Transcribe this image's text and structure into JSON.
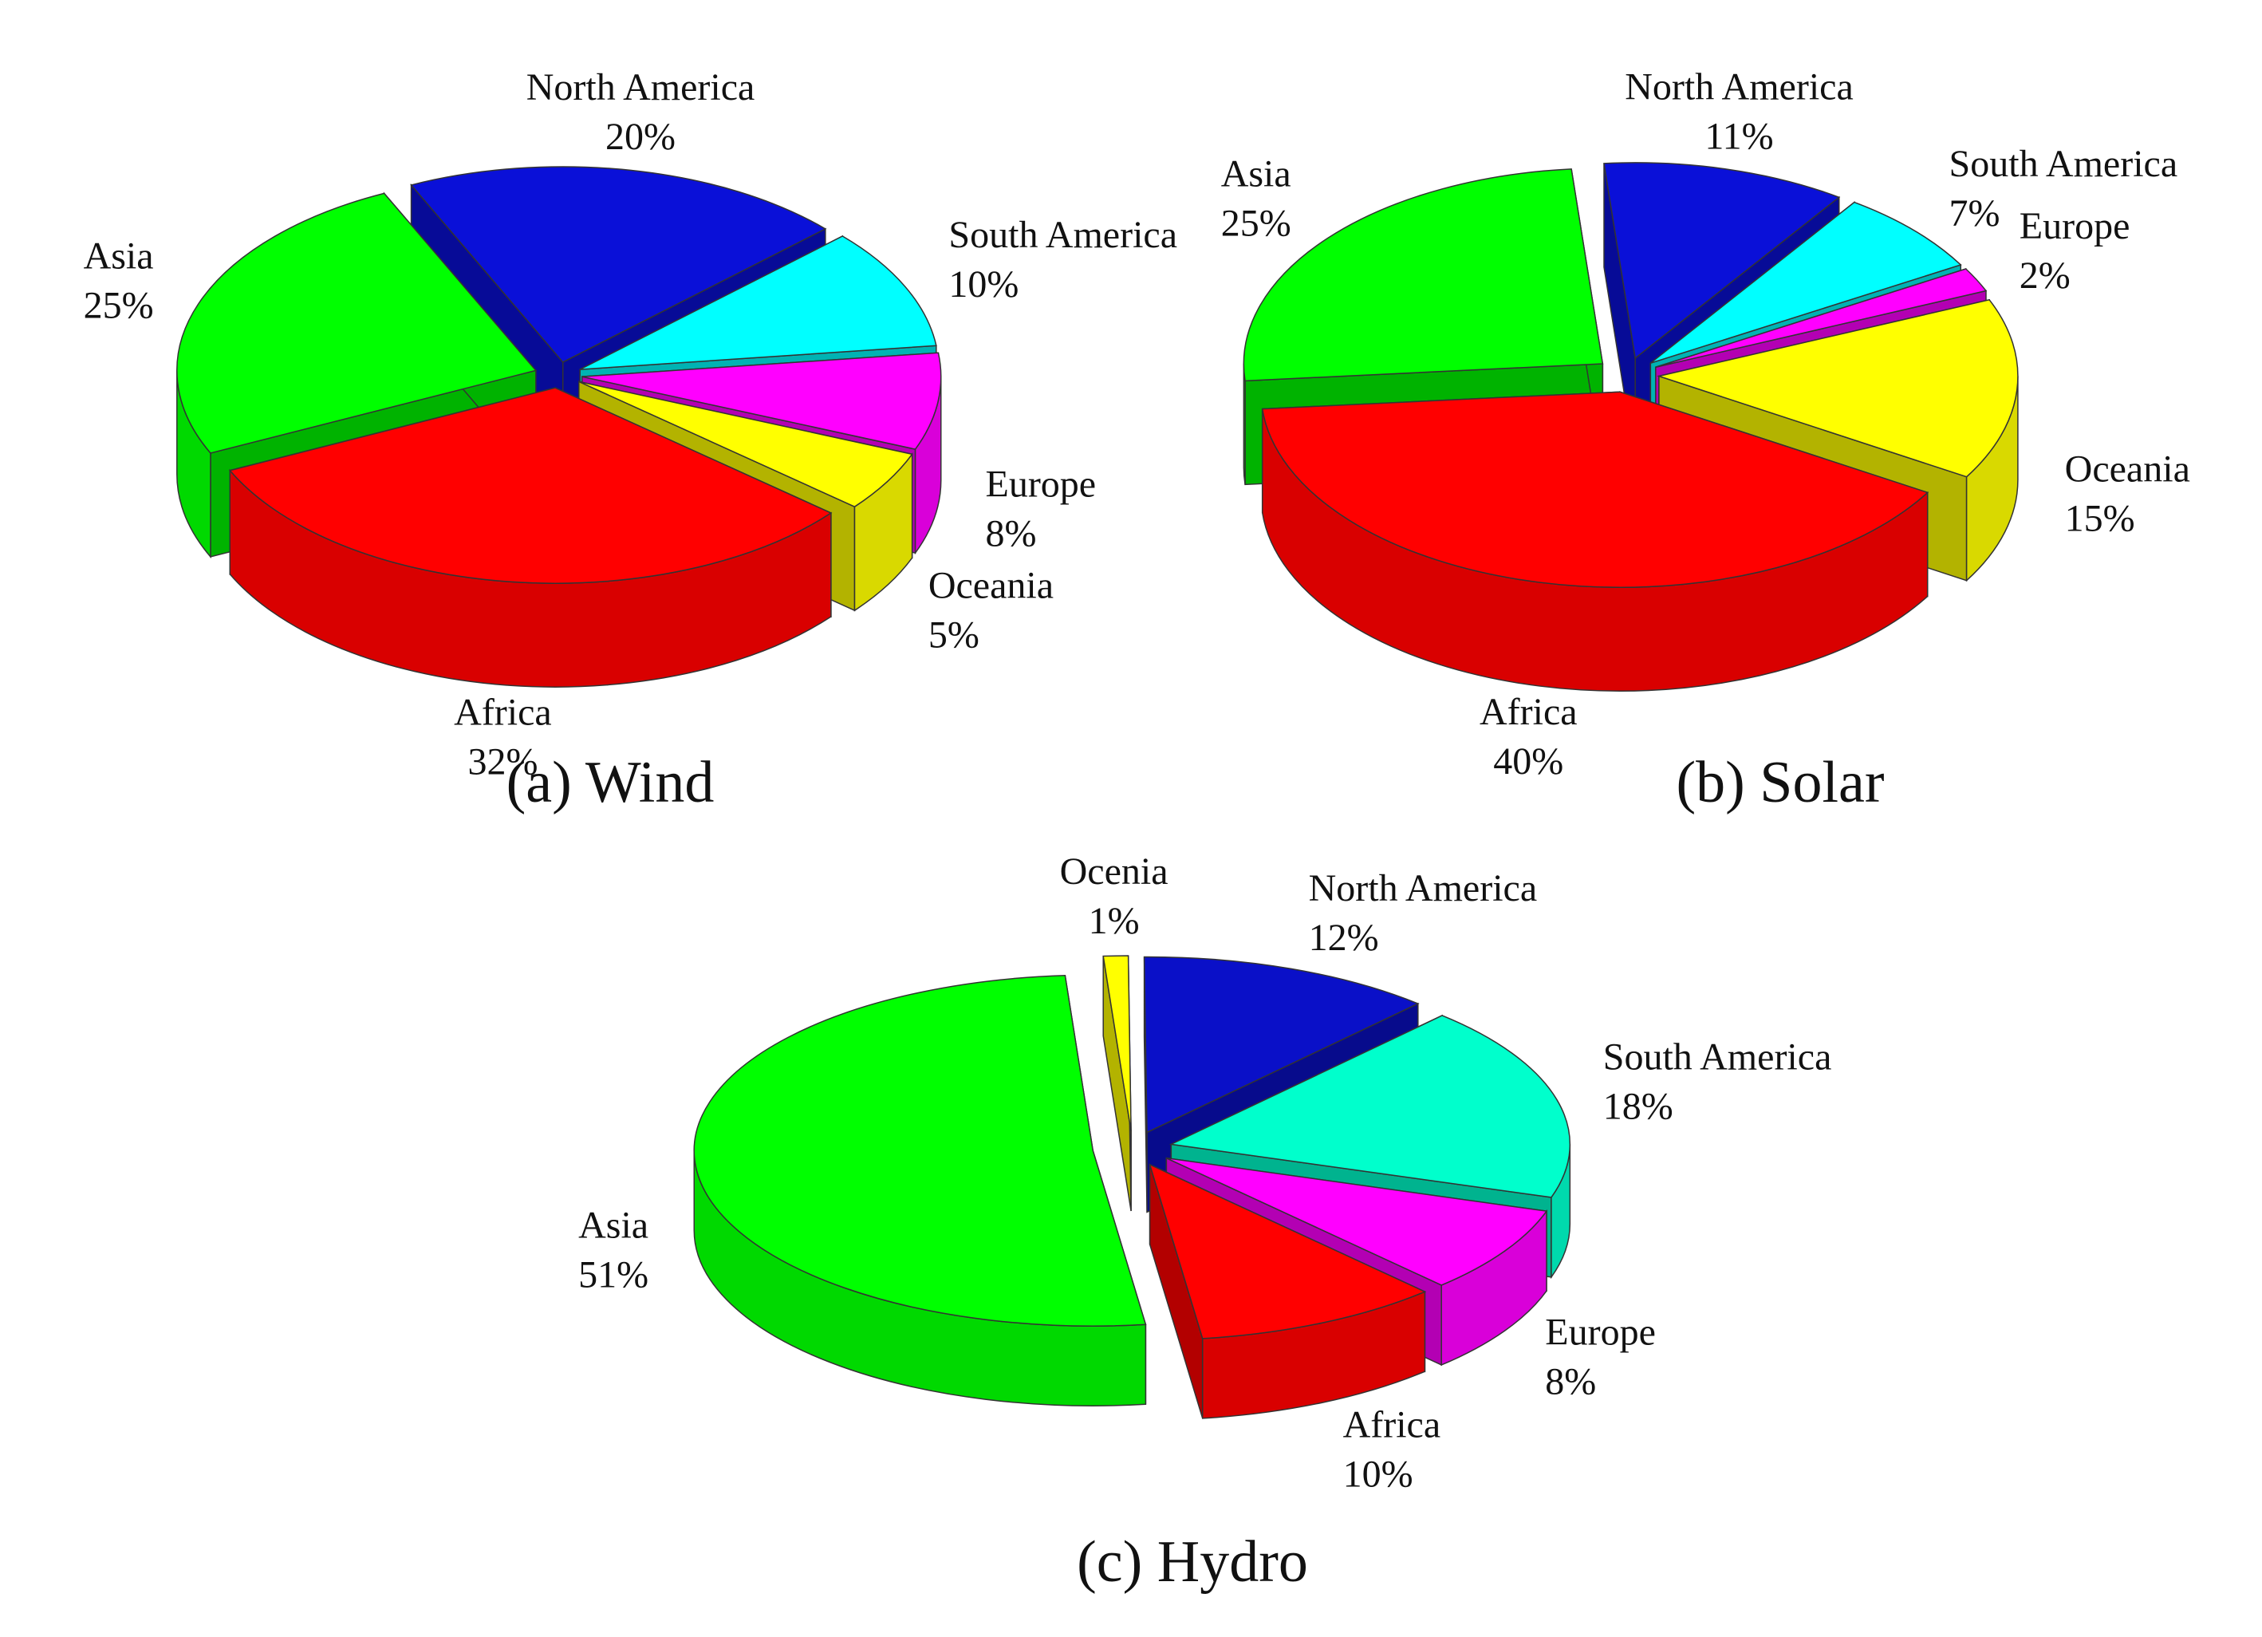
{
  "chart_data": [
    {
      "type": "pie3d",
      "title": "(a) Wind",
      "categories": [
        "North America",
        "South America",
        "Europe",
        "Oceania",
        "Africa",
        "Asia"
      ],
      "values": [
        20,
        10,
        8,
        5,
        32,
        25
      ],
      "value_labels": [
        "20%",
        "10%",
        "8%",
        "5%",
        "32%",
        "25%"
      ],
      "colors": [
        "#0a10d8",
        "#00ffff",
        "#ff00ff",
        "#ffff00",
        "#ff0000",
        "#00ff00"
      ]
    },
    {
      "type": "pie3d",
      "title": "(b) Solar",
      "categories": [
        "North America",
        "South America",
        "Europe",
        "Oceania",
        "Africa",
        "Asia"
      ],
      "values": [
        11,
        7,
        2,
        15,
        40,
        25
      ],
      "value_labels": [
        "11%",
        "7%",
        "2%",
        "15%",
        "40%",
        "25%"
      ],
      "colors": [
        "#0a10d8",
        "#00ffff",
        "#ff00ff",
        "#ffff00",
        "#ff0000",
        "#00ff00"
      ]
    },
    {
      "type": "pie3d",
      "title": "(c) Hydro",
      "categories": [
        "Ocenia",
        "North America",
        "South America",
        "Europe",
        "Africa",
        "Asia"
      ],
      "values": [
        1,
        12,
        18,
        8,
        10,
        51
      ],
      "value_labels": [
        "1%",
        "12%",
        "18%",
        "8%",
        "10%",
        "51%"
      ],
      "colors": [
        "#ffff00",
        "#0a10c8",
        "#00ffcc",
        "#ff00ff",
        "#ff0000",
        "#00ff00"
      ]
    }
  ]
}
